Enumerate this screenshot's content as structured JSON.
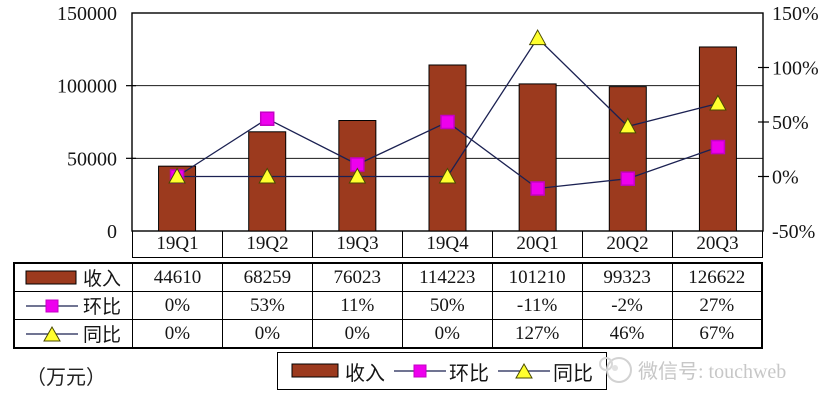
{
  "chart_data": {
    "type": "bar",
    "combo": "bar+line dual-axis with data table",
    "title": "",
    "categories": [
      "19Q1",
      "19Q2",
      "19Q3",
      "19Q4",
      "20Q1",
      "20Q2",
      "20Q3"
    ],
    "series": [
      {
        "name": "收入",
        "type": "bar",
        "axis": "left",
        "values": [
          44610,
          68259,
          76023,
          114223,
          101210,
          99323,
          126622
        ],
        "display": [
          "44610",
          "68259",
          "76023",
          "114223",
          "101210",
          "99323",
          "126622"
        ]
      },
      {
        "name": "环比",
        "type": "line",
        "marker": "square",
        "axis": "right",
        "values": [
          0,
          53,
          11,
          50,
          -11,
          -2,
          27
        ],
        "display": [
          "0%",
          "53%",
          "11%",
          "50%",
          "-11%",
          "-2%",
          "27%"
        ]
      },
      {
        "name": "同比",
        "type": "line",
        "marker": "triangle",
        "axis": "right",
        "values": [
          0,
          0,
          0,
          0,
          127,
          46,
          67
        ],
        "display": [
          "0%",
          "0%",
          "0%",
          "0%",
          "127%",
          "46%",
          "67%"
        ]
      }
    ],
    "left_axis": {
      "min": 0,
      "max": 150000,
      "ticks": [
        150000,
        100000,
        50000,
        0
      ],
      "tick_labels": [
        "150000",
        "100000",
        "50000",
        "0"
      ]
    },
    "right_axis": {
      "min": -50,
      "max": 150,
      "ticks": [
        150,
        100,
        50,
        0,
        -50
      ],
      "tick_labels": [
        "150%",
        "100%",
        "50%",
        "0%",
        "-50%"
      ]
    },
    "grid": "horizontal major gridlines",
    "legend_position": "bottom"
  },
  "colors": {
    "bar_fill": "#9C3A1E",
    "bar_stroke": "#000000",
    "line": "#1B2152",
    "square_fill": "#EE00EE",
    "square_stroke": "#C400C4",
    "triangle_fill": "#FFFF2E",
    "triangle_stroke": "#4A4A00",
    "watermark": "#C7C7C7"
  },
  "unit_label": "（万元）",
  "legend": {
    "items": [
      {
        "label": "收入",
        "swatch": "bar"
      },
      {
        "label": "环比",
        "swatch": "line-square"
      },
      {
        "label": "同比",
        "swatch": "line-triangle"
      }
    ]
  },
  "watermark": {
    "text": "微信号: touchweb"
  }
}
